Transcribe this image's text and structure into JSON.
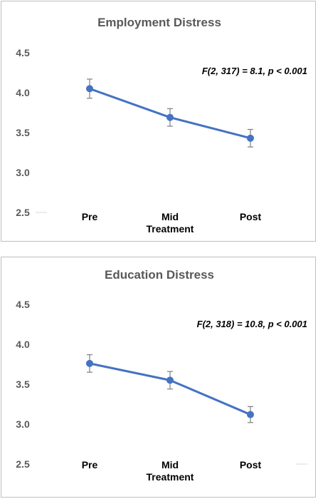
{
  "chart_data": [
    {
      "type": "line",
      "title": "Employment Distress",
      "categories": [
        "Pre",
        "Mid Treatment",
        "Post"
      ],
      "category_lines": [
        [
          "Pre"
        ],
        [
          "Mid",
          "Treatment"
        ],
        [
          "Post"
        ]
      ],
      "series": [
        {
          "values": [
            4.05,
            3.69,
            3.43
          ],
          "error": [
            0.12,
            0.11,
            0.11
          ],
          "color": "#4472c4"
        }
      ],
      "yticks": [
        "2.5",
        "3.0",
        "3.5",
        "4.0",
        "4.5"
      ],
      "ylim": [
        2.5,
        4.5
      ],
      "grid": false,
      "annotation": "F(2, 317) = 8.1, p < 0.001"
    },
    {
      "type": "line",
      "title": "Education Distress",
      "categories": [
        "Pre",
        "Mid Treatment",
        "Post"
      ],
      "category_lines": [
        [
          "Pre"
        ],
        [
          "Mid",
          "Treatment"
        ],
        [
          "Post"
        ]
      ],
      "series": [
        {
          "values": [
            3.76,
            3.55,
            3.12
          ],
          "error": [
            0.11,
            0.11,
            0.1
          ],
          "color": "#4472c4"
        }
      ],
      "yticks": [
        "2.5",
        "3.0",
        "3.5",
        "4.0",
        "4.5"
      ],
      "ylim": [
        2.5,
        4.5
      ],
      "grid": false,
      "annotation": "F(2, 318) = 10.8, p < 0.001"
    }
  ]
}
